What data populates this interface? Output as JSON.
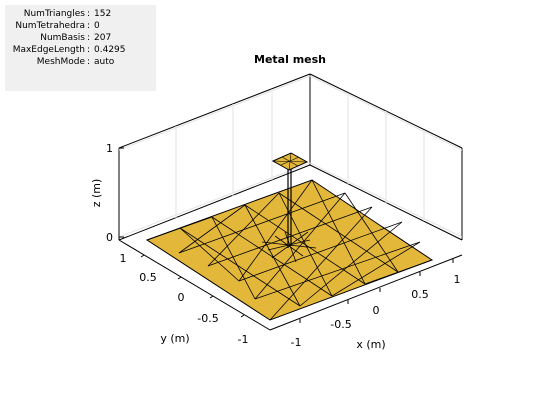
{
  "info": [
    {
      "name": "NumTriangles",
      "value": "152"
    },
    {
      "name": "NumTetrahedra",
      "value": "0"
    },
    {
      "name": "NumBasis",
      "value": "207"
    },
    {
      "name": "MaxEdgeLength",
      "value": "0.4295"
    },
    {
      "name": "MeshMode",
      "value": "auto"
    }
  ],
  "plot": {
    "title": "Metal mesh",
    "xlabel": "x (m)",
    "ylabel": "y (m)",
    "zlabel": "z (m)",
    "x_ticks": [
      "-1",
      "-0.5",
      "0",
      "0.5",
      "1"
    ],
    "y_ticks": [
      "1",
      "0.5",
      "0",
      "-0.5",
      "-1"
    ],
    "z_ticks": [
      "1",
      "0"
    ]
  },
  "colors": {
    "metal": "#e3b73a",
    "edge": "#000000",
    "panel_bg": "#f0f0f0",
    "grid": "#e3e3e3"
  }
}
